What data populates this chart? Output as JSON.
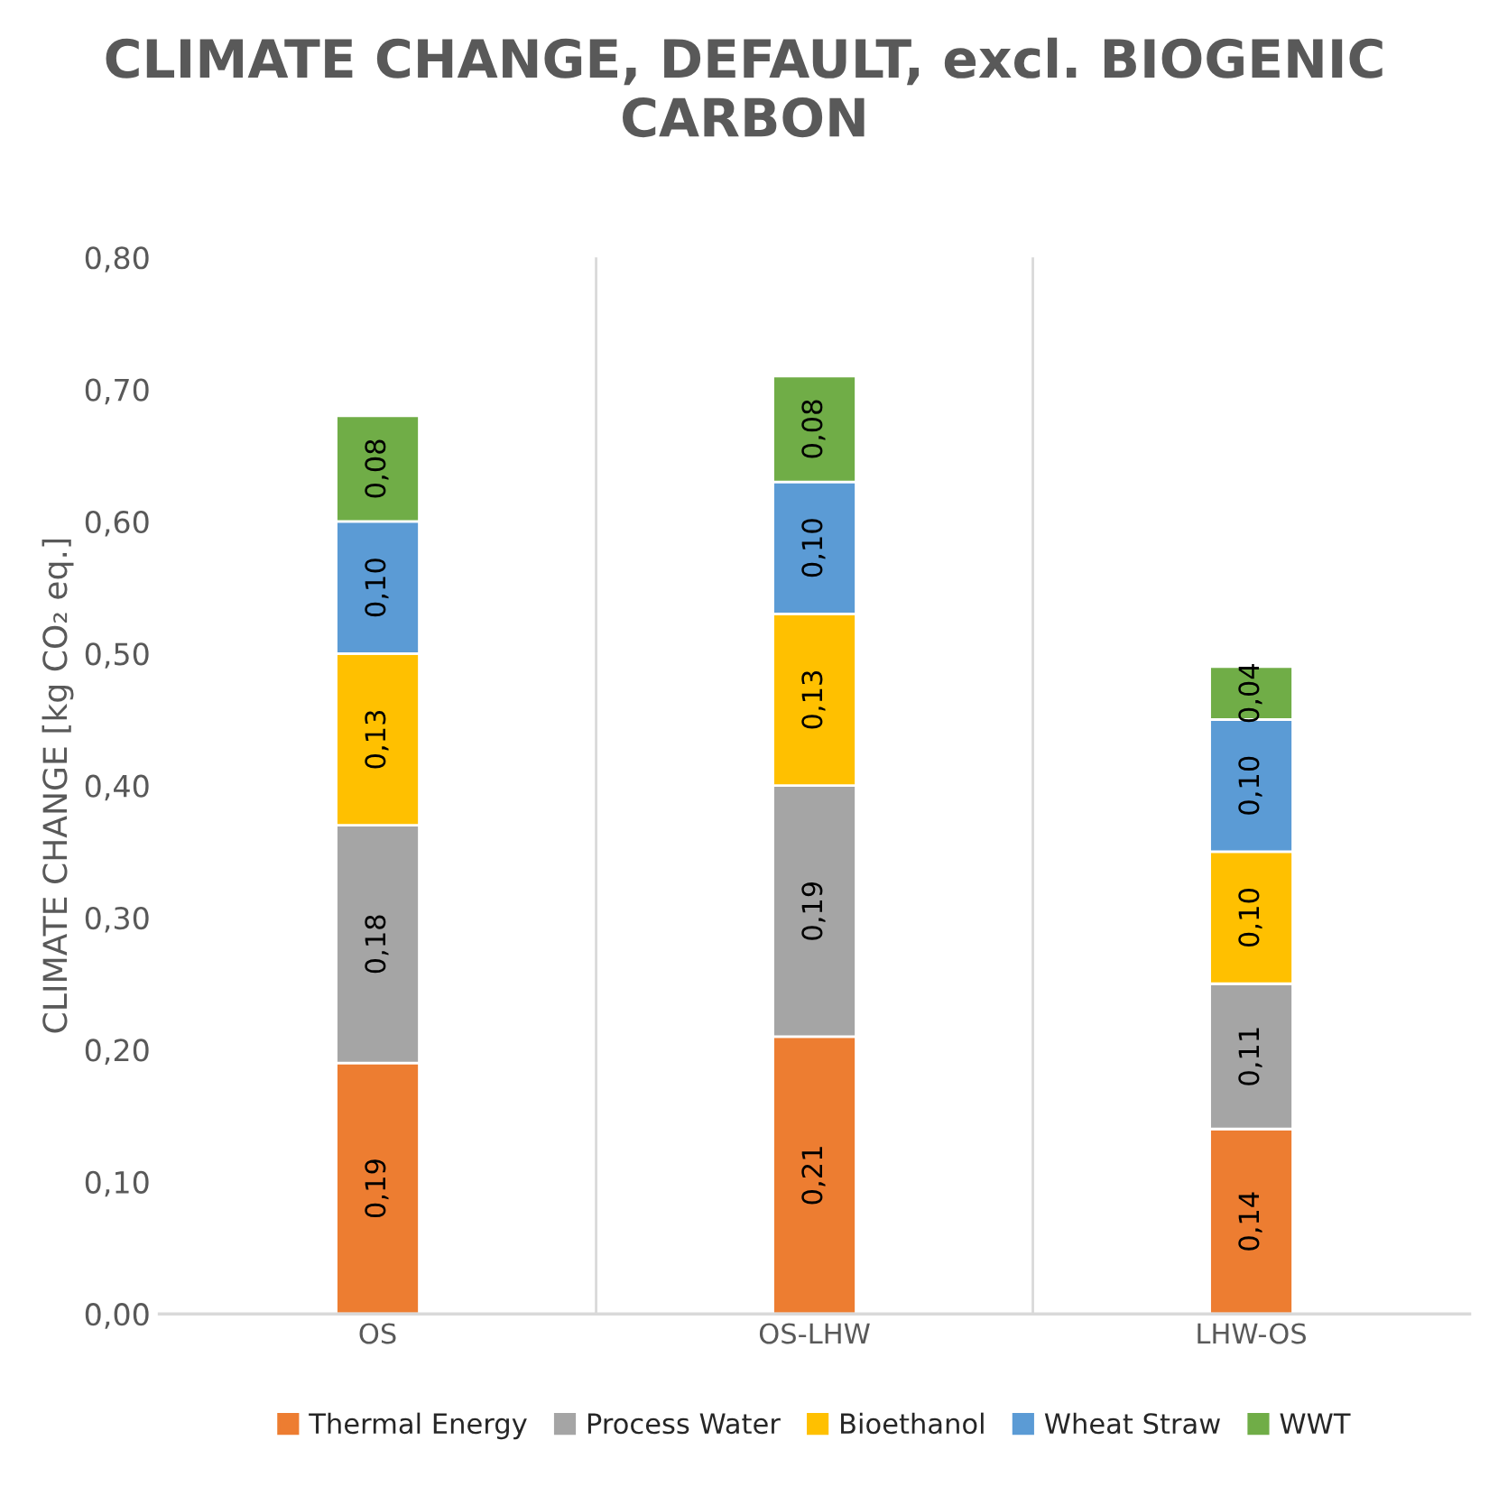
{
  "chart_data": {
    "type": "bar",
    "stacked": true,
    "title": "CLIMATE CHANGE, DEFAULT, excl. BIOGENIC CARBON",
    "ylabel": "CLIMATE CHANGE [kg CO₂ eq.]",
    "categories": [
      "OS",
      "OS-LHW",
      "LHW-OS"
    ],
    "series": [
      {
        "name": "Thermal Energy",
        "color": "#ed7d31",
        "values": [
          0.19,
          0.21,
          0.14
        ],
        "value_labels": [
          "0,19",
          "0,21",
          "0,14"
        ]
      },
      {
        "name": "Process Water",
        "color": "#a5a5a5",
        "values": [
          0.18,
          0.19,
          0.11
        ],
        "value_labels": [
          "0,18",
          "0,19",
          "0,11"
        ]
      },
      {
        "name": "Bioethanol",
        "color": "#ffc000",
        "values": [
          0.13,
          0.13,
          0.1
        ],
        "value_labels": [
          "0,13",
          "0,13",
          "0,10"
        ]
      },
      {
        "name": "Wheat Straw",
        "color": "#5b9bd5",
        "values": [
          0.1,
          0.1,
          0.1
        ],
        "value_labels": [
          "0,10",
          "0,10",
          "0,10"
        ]
      },
      {
        "name": "WWT",
        "color": "#70ad47",
        "values": [
          0.08,
          0.08,
          0.04
        ],
        "value_labels": [
          "0,08",
          "0,08",
          "0,04"
        ]
      }
    ],
    "ylim": [
      0,
      0.8
    ],
    "yticks": [
      {
        "value": 0,
        "label": "0,00"
      },
      {
        "value": 0.1,
        "label": "0,10"
      },
      {
        "value": 0.2,
        "label": "0,20"
      },
      {
        "value": 0.3,
        "label": "0,30"
      },
      {
        "value": 0.4,
        "label": "0,40"
      },
      {
        "value": 0.5,
        "label": "0,50"
      },
      {
        "value": 0.6,
        "label": "0,60"
      },
      {
        "value": 0.7,
        "label": "0,70"
      },
      {
        "value": 0.8,
        "label": "0,80"
      }
    ],
    "grid": "x",
    "legend": "bottom"
  }
}
